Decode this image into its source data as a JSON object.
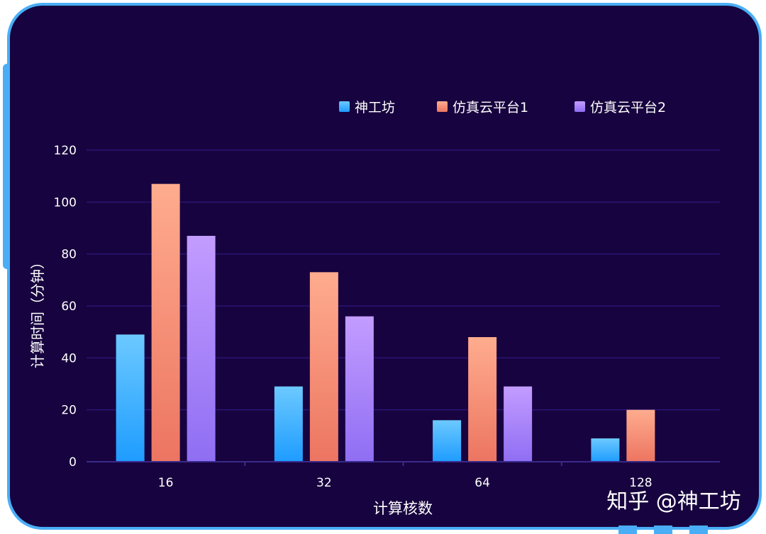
{
  "chart_data": {
    "type": "bar",
    "categories": [
      "16",
      "32",
      "64",
      "128"
    ],
    "series": [
      {
        "name": "神工坊",
        "values": [
          49,
          29,
          16,
          9
        ],
        "color_top": "#6cc9ff",
        "color_bottom": "#1e9cff"
      },
      {
        "name": "仿真云平台1",
        "values": [
          107,
          73,
          48,
          20
        ],
        "color_top": "#ffac8e",
        "color_bottom": "#ec7561"
      },
      {
        "name": "仿真云平台2",
        "values": [
          87,
          56,
          29,
          null
        ],
        "color_top": "#c39cff",
        "color_bottom": "#8f6ef3"
      }
    ],
    "xlabel": "计算核数",
    "ylabel": "计算时间（分钟）",
    "ylim": [
      0,
      120
    ],
    "yticks": [
      0,
      20,
      40,
      60,
      80,
      100,
      120
    ],
    "grid": true,
    "legend_position": "top-right"
  },
  "watermark": "知乎 @神工坊",
  "colors": {
    "background": "#17033f",
    "frame_border": "#49aef6",
    "gridline": "#2a1575",
    "axis_line": "#3a2a8a",
    "text": "#ffffff"
  }
}
